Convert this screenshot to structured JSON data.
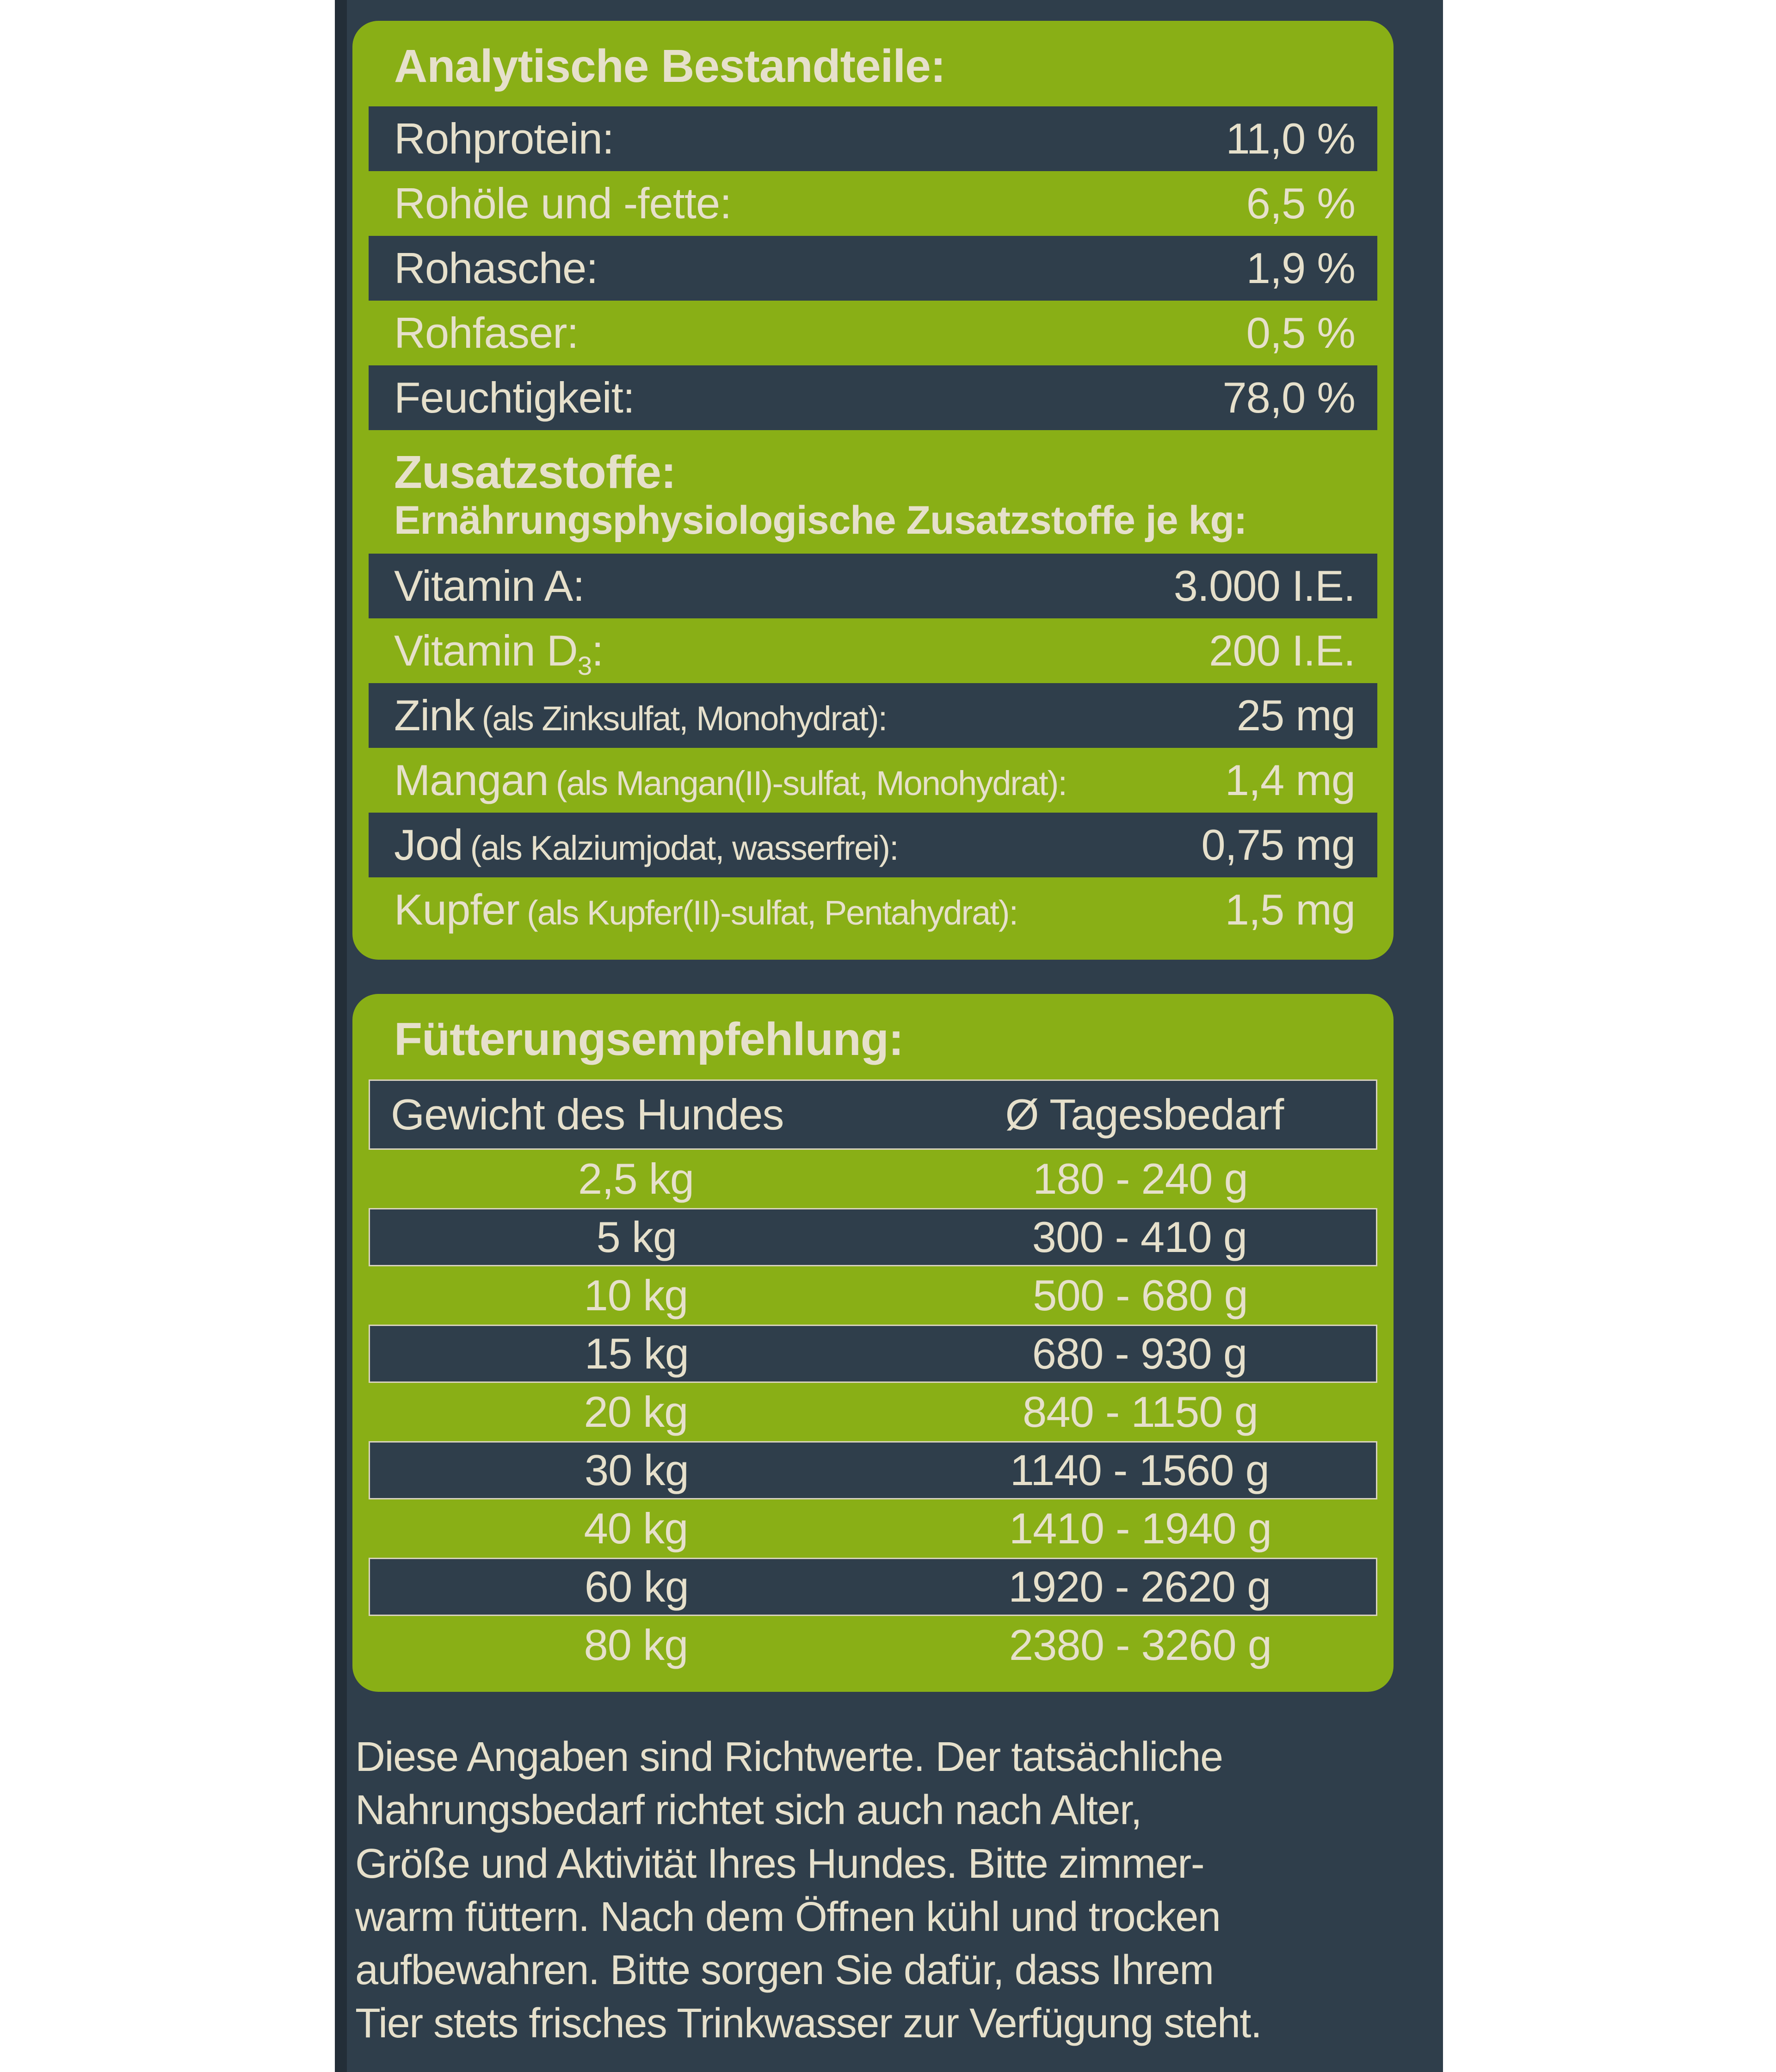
{
  "colors": {
    "page-bg": "#ffffff",
    "label-bg": "#2f3e4b",
    "label-edge": "#232e38",
    "panel-green": "#89af16",
    "text-cream": "#e6e0cb",
    "row-border": "#d9d3bd"
  },
  "analytical": {
    "heading": "Analytische Bestandteile:",
    "rows": [
      {
        "label": "Rohprotein:",
        "value": "11,0 %"
      },
      {
        "label": "Rohöle und -fette:",
        "value": "6,5 %"
      },
      {
        "label": "Rohasche:",
        "value": "1,9 %"
      },
      {
        "label": "Rohfaser:",
        "value": "0,5 %"
      },
      {
        "label": "Feuchtigkeit:",
        "value": "78,0 %"
      }
    ]
  },
  "additives": {
    "heading": "Zusatzstoffe:",
    "subheading": "Ernährungsphysiologische Zusatzstoffe je kg:",
    "rows": [
      {
        "name": "Vitamin A:",
        "sub": "",
        "suffix": "",
        "detail": "",
        "value": "3.000 I.E."
      },
      {
        "name": "Vitamin D",
        "sub": "3",
        "suffix": ":",
        "detail": "",
        "value": "200 I.E."
      },
      {
        "name": "Zink",
        "sub": "",
        "suffix": "",
        "detail": "(als Zinksulfat, Monohydrat):",
        "value": "25 mg"
      },
      {
        "name": "Mangan",
        "sub": "",
        "suffix": "",
        "detail": "(als Mangan(II)-sulfat, Monohydrat):",
        "value": "1,4 mg"
      },
      {
        "name": "Jod",
        "sub": "",
        "suffix": "",
        "detail": "(als Kalziumjodat, wasserfrei):",
        "value": "0,75 mg"
      },
      {
        "name": "Kupfer",
        "sub": "",
        "suffix": "",
        "detail": "(als Kupfer(II)-sulfat, Pentahydrat):",
        "value": "1,5 mg"
      }
    ]
  },
  "feeding": {
    "heading": "Fütterungsempfehlung:",
    "columns": {
      "weight": "Gewicht des Hundes",
      "daily": "Ø Tagesbedarf"
    },
    "rows": [
      {
        "weight": "2,5 kg",
        "amount": "180 - 240 g"
      },
      {
        "weight": "5 kg",
        "amount": "300 - 410 g"
      },
      {
        "weight": "10 kg",
        "amount": "500 - 680 g"
      },
      {
        "weight": "15 kg",
        "amount": "680 - 930 g"
      },
      {
        "weight": "20 kg",
        "amount": "840 - 1150 g"
      },
      {
        "weight": "30 kg",
        "amount": "1140 - 1560 g"
      },
      {
        "weight": "40 kg",
        "amount": "1410 - 1940 g"
      },
      {
        "weight": "60 kg",
        "amount": "1920 - 2620 g"
      },
      {
        "weight": "80 kg",
        "amount": "2380 - 3260 g"
      }
    ]
  },
  "disclaimer": "Diese Angaben sind Richtwerte. Der tatsächliche\nNahrungsbedarf richtet sich auch nach Alter,\nGröße und Aktivität Ihres Hundes. Bitte zimmer-\nwarm füttern. Nach dem Öffnen kühl und trocken\naufbewahren. Bitte sorgen Sie dafür, dass Ihrem\nTier stets frisches Trinkwasser zur Verfügung steht."
}
